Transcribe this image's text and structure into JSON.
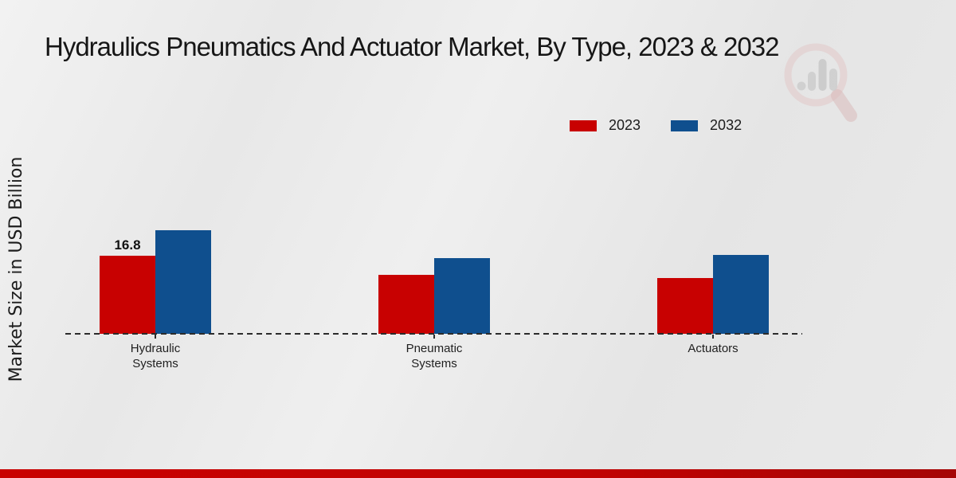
{
  "title": "Hydraulics Pneumatics And Actuator Market, By Type, 2023 & 2032",
  "y_axis_label": "Market Size in USD Billion",
  "watermark_icon": "magnifier-bar-chart-icon",
  "colors": {
    "series_2023": "#c80101",
    "series_2032": "#0f4f8e",
    "footer_accent": "#c90101",
    "text": "#1c1c1c"
  },
  "chart_data": {
    "type": "bar",
    "categories": [
      "Hydraulic\nSystems",
      "Pneumatic\nSystems",
      "Actuators"
    ],
    "series": [
      {
        "name": "2023",
        "color": "#c80101",
        "values": [
          16.8,
          12.6,
          12.0
        ]
      },
      {
        "name": "2032",
        "color": "#0f4f8e",
        "values": [
          22.2,
          16.3,
          17.0
        ]
      }
    ],
    "data_labels": [
      {
        "series": "2023",
        "category_index": 0,
        "text": "16.8"
      }
    ],
    "title": "Hydraulics Pneumatics And Actuator Market, By Type, 2023 & 2032",
    "xlabel": "",
    "ylabel": "Market Size in USD Billion",
    "ylim": [
      0,
      25
    ],
    "grid": false,
    "baseline_style": "dashed",
    "legend_position": "top-right"
  }
}
